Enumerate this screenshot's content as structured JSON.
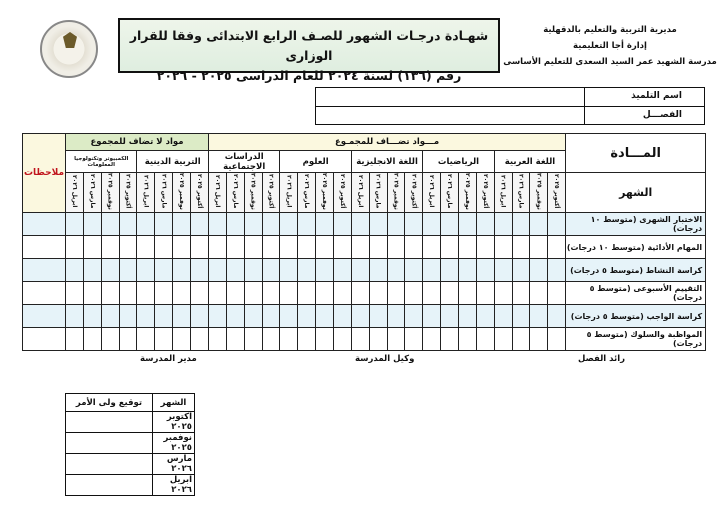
{
  "header": {
    "org_lines": [
      "مديرية التربية والتعليم بالدقهلية",
      "إدارة أجا التعليمية",
      "مدرسة الشهيد عمر السيد السعدى للتعليم الأساسى"
    ],
    "title_line1": "شهـادة درجـات الشهور للصـف الرابع الابتدائى وفقا للقرار الوزارى",
    "title_line2": "رقم (١٣٦) لسنة ٢٠٢٤ للعام الدراسى ٢٠٢٥ - ٢٠٢٦",
    "logo_text": "MINISTRY OF EDUCATION AND TECHNICAL EDUCATION"
  },
  "student": {
    "name_label": "اسم التلميذ",
    "name_value": "",
    "class_label": "الفصـــل",
    "class_value": ""
  },
  "grades": {
    "subject_header": "المـــادة",
    "month_header": "الشهر",
    "remarks_header": "ملاحظات",
    "group_added": "مـــواد تضـــاف للمجمـوع",
    "group_not_added": "مواد لا تضاف للمجموع",
    "subjects": [
      "اللغة العربية",
      "الرياضيات",
      "اللغة الانجليزية",
      "العلوم",
      "الدراسات الاجتماعية",
      "التربية الدينية",
      "الكمبيوتر وتكنولوجيا المعلومات"
    ],
    "months": [
      "أكتوبر ٢٠٢٥",
      "نوفمبر ٢٠٢٥",
      "مارس ٢٠٢٦",
      "ابريل ٢٠٢٦"
    ],
    "rows": [
      "الاختبار الشهرى (متوسط ١٠ درجات)",
      "المهام الأدائية (متوسط ١٠ درجات)",
      "كراسة النشاط (متوسط ٥ درجات)",
      "التقييم الأسبوعى (متوسط ٥ درجات)",
      "كراسة الواجب (متوسط ٥ درجات)",
      "المواظبة والسلوك (متوسط ٥ درجات)"
    ]
  },
  "signatures": {
    "class_teacher": "رائد الفصل",
    "vice_principal": "وكيل المدرسة",
    "principal": "مدير المدرسة"
  },
  "parent_table": {
    "month_header": "الشهر",
    "signature_header": "توقيع ولى الأمر",
    "months": [
      "اكتوبر ٢٠٢٥",
      "نوفمبر ٢٠٢٥",
      "مارس ٢٠٢٦",
      "ابريل ٢٠٢٦"
    ]
  },
  "colors": {
    "remarks_text": "#c0141c",
    "group_added_bg": "#fbf8df",
    "group_not_added_bg": "#dcebc6",
    "row_shade": "#e6f3f9"
  }
}
